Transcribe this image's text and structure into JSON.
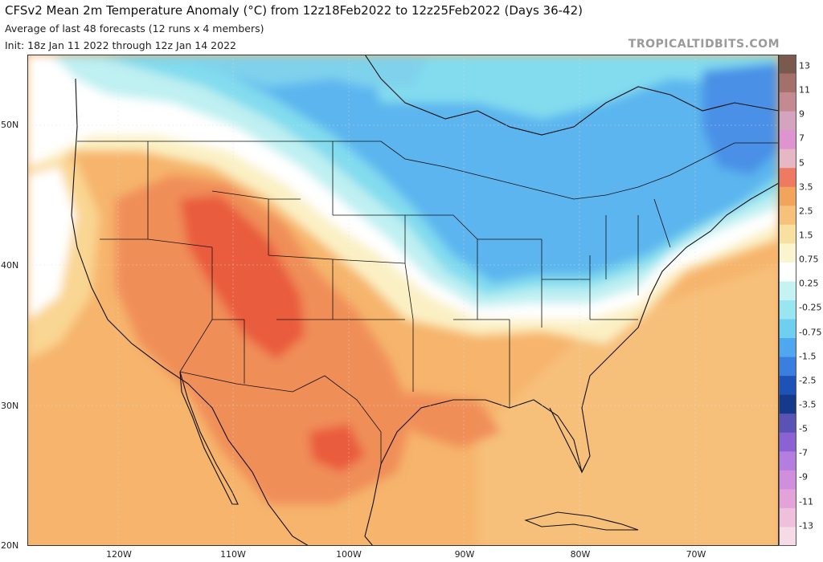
{
  "header": {
    "title": "CFSv2 Mean 2m Temperature Anomaly (°C) from 12z18Feb2022 to 12z25Feb2022 (Days 36-42)",
    "subtitle": "Average of last 48 forecasts (12 runs x 4 members)",
    "init": "Init: 18z Jan 11 2022 through 12z Jan 14 2022",
    "watermark": "TROPICALTIDBITS.COM"
  },
  "map": {
    "lat_labels": [
      "50N",
      "40N",
      "30N",
      "20N"
    ],
    "lon_labels": [
      "120W",
      "110W",
      "100W",
      "90W",
      "80W",
      "70W"
    ],
    "extent": {
      "lon_min": -127.5,
      "lon_max": -62.5,
      "lat_min": 20,
      "lat_max": 55.5
    }
  },
  "colorbar": {
    "labels": [
      "13",
      "11",
      "9",
      "7",
      "5",
      "3.5",
      "2.5",
      "1.5",
      "0.75",
      "0.25",
      "-0.25",
      "-0.75",
      "-1.5",
      "-2.5",
      "-3.5",
      "-5",
      "-7",
      "-9",
      "-11",
      "-13"
    ],
    "colors": [
      "#7a5a4f",
      "#a3706b",
      "#c58a91",
      "#d4a3bd",
      "#dd94cf",
      "#e6b7c5",
      "#ee7a62",
      "#f2a35c",
      "#f6c27b",
      "#f8e1a0",
      "#fbf5cf",
      "#ffffff",
      "#c5f3f3",
      "#9ae6f0",
      "#6fcff0",
      "#4fa8ef",
      "#3a7fe0",
      "#1f52b7",
      "#163a8a",
      "#5a52b5",
      "#8a62d4",
      "#b27fe0",
      "#cf8fdc",
      "#e3a3d8",
      "#eec0dc",
      "#f5dbe6"
    ]
  },
  "legend_colors": {
    "strong_warm": "#e95b3e",
    "warm": "#f08e58",
    "mild_warm": "#f6b46c",
    "slight_warm": "#f9d693",
    "near_zero": "#fbf0c4",
    "neutral": "#ffffff",
    "slight_cool": "#bff0f2",
    "cool": "#82dcee",
    "colder": "#5cb5ee",
    "cold": "#4a90e6",
    "very_cold": "#3a75d8"
  }
}
